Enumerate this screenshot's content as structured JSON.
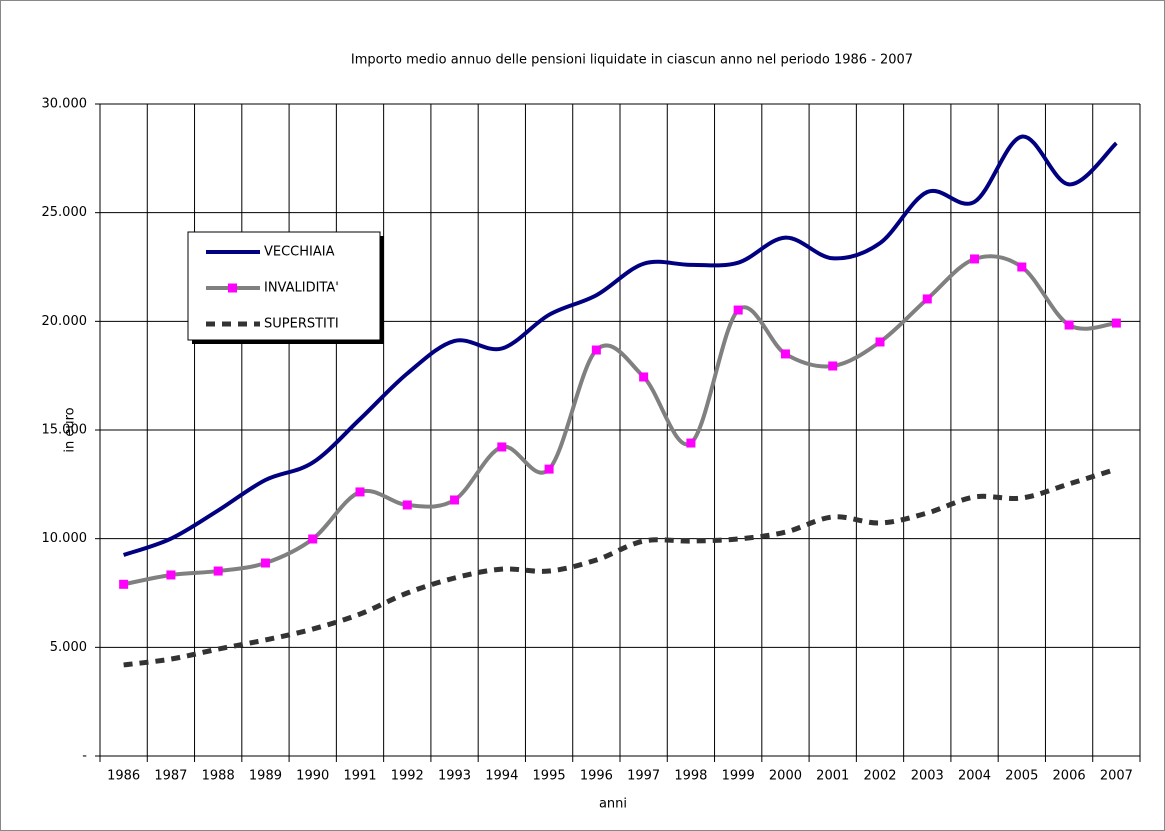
{
  "chart_data": {
    "type": "line",
    "title": "Importo medio annuo delle pensioni liquidate in ciascun anno nel periodo 1986 - 2007",
    "x_label": "anni",
    "y_label": "in euro",
    "categories": [
      "1986",
      "1987",
      "1988",
      "1989",
      "1990",
      "1991",
      "1992",
      "1993",
      "1994",
      "1995",
      "1996",
      "1997",
      "1998",
      "1999",
      "2000",
      "2001",
      "2002",
      "2003",
      "2004",
      "2005",
      "2006",
      "2007"
    ],
    "ylim": [
      0,
      30000
    ],
    "yticks": [
      {
        "value": 0,
        "label": "-"
      },
      {
        "value": 5000,
        "label": "5.000"
      },
      {
        "value": 10000,
        "label": "10.000"
      },
      {
        "value": 15000,
        "label": "15.000"
      },
      {
        "value": 20000,
        "label": "20.000"
      },
      {
        "value": 25000,
        "label": "25.000"
      },
      {
        "value": 30000,
        "label": "30.000"
      }
    ],
    "grid": true,
    "smooth": true,
    "legend": "upper left",
    "series": [
      {
        "name": "VECCHIAIA",
        "color": "#000080",
        "dash": "solid",
        "marker": "none",
        "values": [
          9250,
          10000,
          11300,
          12700,
          13500,
          15500,
          17600,
          19100,
          18750,
          20300,
          21200,
          22650,
          22600,
          22700,
          23850,
          22900,
          23600,
          25950,
          25500,
          28500,
          26300,
          28200
        ]
      },
      {
        "name": "INVALIDITA'",
        "color": "#808080",
        "marker_color": "#ff00ff",
        "dash": "solid",
        "marker": "square",
        "values": [
          7900,
          8330,
          8510,
          8880,
          9985,
          12150,
          11550,
          11780,
          14220,
          13200,
          18680,
          17440,
          14400,
          20520,
          18500,
          17945,
          19050,
          21030,
          22870,
          22500,
          19830,
          19920
        ]
      },
      {
        "name": "SUPERSTITI",
        "color": "#333333",
        "dash": "dashed",
        "marker": "none",
        "values": [
          4190,
          4460,
          4920,
          5340,
          5840,
          6530,
          7500,
          8190,
          8600,
          8510,
          9020,
          9890,
          9890,
          9985,
          10300,
          11000,
          10720,
          11180,
          11920,
          11870,
          12520,
          13200
        ]
      }
    ]
  }
}
